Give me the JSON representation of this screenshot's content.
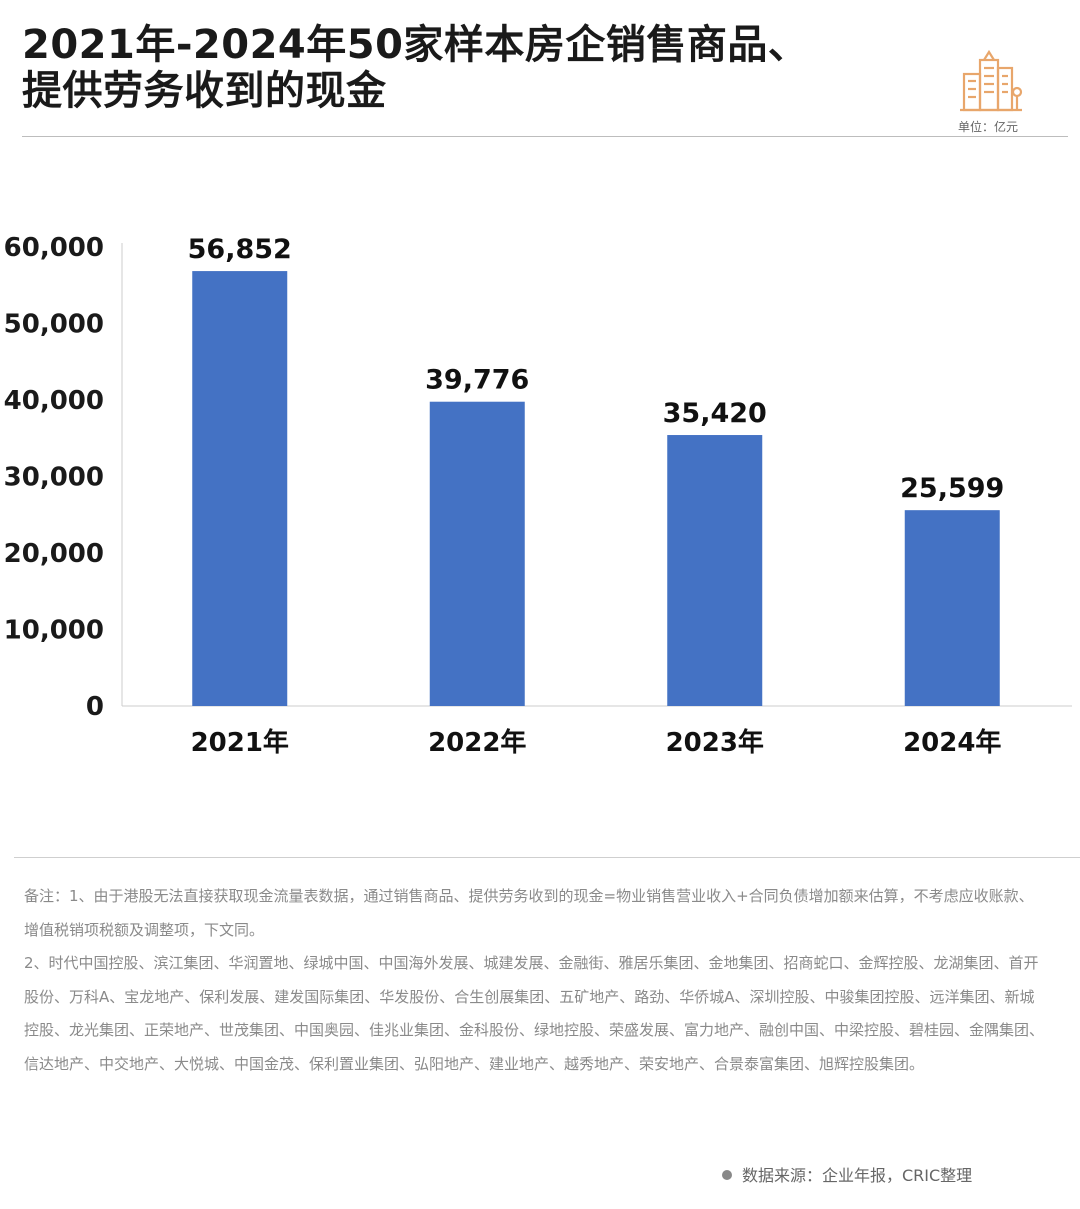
{
  "title": {
    "line1": "2021年-2024年50家样本房企销售商品、",
    "line2": "提供劳务收到的现金"
  },
  "unit_label": "单位：亿元",
  "logo_icon": "city-buildings-icon",
  "colors": {
    "bar": "#4472C4",
    "logo": "#E8A66B",
    "axis": "#cccccc"
  },
  "chart_data": {
    "type": "bar",
    "categories": [
      "2021年",
      "2022年",
      "2023年",
      "2024年"
    ],
    "values": [
      56852,
      39776,
      35420,
      25599
    ],
    "value_labels": [
      "56,852",
      "39,776",
      "35,420",
      "25,599"
    ],
    "yticks": [
      "0",
      "10,000",
      "20,000",
      "30,000",
      "40,000",
      "50,000",
      "60,000"
    ],
    "ylim": [
      0,
      60000
    ],
    "unit": "亿元",
    "grid": false,
    "legend": "none"
  },
  "notes": {
    "line1": "备注：1、由于港股无法直接获取现金流量表数据，通过销售商品、提供劳务收到的现金=物业销售营业收入+合同负债增加额来估算，不考虑应收账款、增值税销项税额及调整项，下文同。",
    "line2": "2、时代中国控股、滨江集团、华润置地、绿城中国、中国海外发展、城建发展、金融街、雅居乐集团、金地集团、招商蛇口、金辉控股、龙湖集团、首开股份、万科A、宝龙地产、保利发展、建发国际集团、华发股份、合生创展集团、五矿地产、路劲、华侨城A、深圳控股、中骏集团控股、远洋集团、新城控股、龙光集团、正荣地产、世茂集团、中国奥园、佳兆业集团、金科股份、绿地控股、荣盛发展、富力地产、融创中国、中梁控股、碧桂园、金隅集团、信达地产、中交地产、大悦城、中国金茂、保利置业集团、弘阳地产、建业地产、越秀地产、荣安地产、合景泰富集团、旭辉控股集团。"
  },
  "source": "数据来源：企业年报，CRIC整理"
}
